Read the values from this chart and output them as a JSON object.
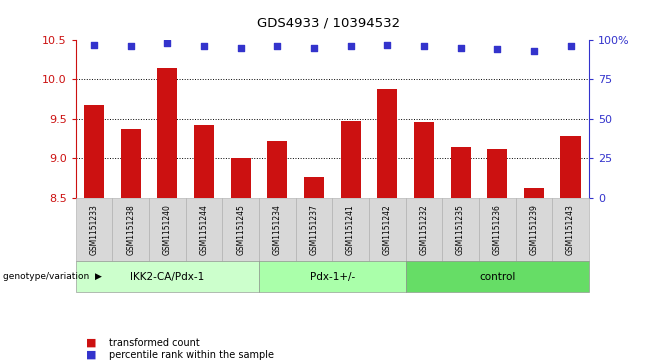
{
  "title": "GDS4933 / 10394532",
  "samples": [
    "GSM1151233",
    "GSM1151238",
    "GSM1151240",
    "GSM1151244",
    "GSM1151245",
    "GSM1151234",
    "GSM1151237",
    "GSM1151241",
    "GSM1151242",
    "GSM1151232",
    "GSM1151235",
    "GSM1151236",
    "GSM1151239",
    "GSM1151243"
  ],
  "bar_values": [
    9.68,
    9.37,
    10.14,
    9.42,
    9.0,
    9.22,
    8.76,
    9.47,
    9.88,
    9.46,
    9.15,
    9.12,
    8.63,
    9.28
  ],
  "percentile_values": [
    97,
    96,
    98,
    96,
    95,
    96,
    95,
    96,
    97,
    96,
    95,
    94,
    93,
    96
  ],
  "ylim_left": [
    8.5,
    10.5
  ],
  "ylim_right": [
    0,
    100
  ],
  "yticks_left": [
    8.5,
    9.0,
    9.5,
    10.0,
    10.5
  ],
  "yticks_right": [
    0,
    25,
    50,
    75,
    100
  ],
  "ytick_labels_right": [
    "0",
    "25",
    "50",
    "75",
    "100%"
  ],
  "bar_color": "#cc1111",
  "percentile_color": "#3333cc",
  "groups": [
    {
      "label": "IKK2-CA/Pdx-1",
      "start": 0,
      "end": 5,
      "color": "#ccffcc"
    },
    {
      "label": "Pdx-1+/-",
      "start": 5,
      "end": 9,
      "color": "#aaffaa"
    },
    {
      "label": "control",
      "start": 9,
      "end": 14,
      "color": "#66dd66"
    }
  ],
  "group_label_prefix": "genotype/variation",
  "legend_bar_label": "transformed count",
  "legend_dot_label": "percentile rank within the sample",
  "sample_box_color": "#d8d8d8",
  "plot_bg": "#ffffff"
}
